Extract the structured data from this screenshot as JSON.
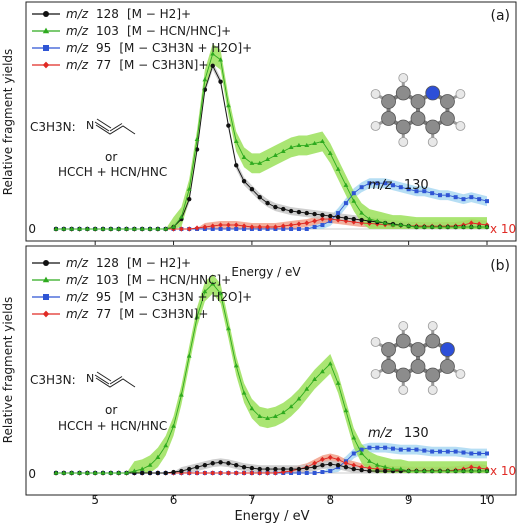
{
  "figure": {
    "ylabel": "Relative fragment yields",
    "xlabel": "Energy / eV",
    "xticks": [
      "5",
      "6",
      "7",
      "8",
      "9",
      "10"
    ],
    "zero_label": "0",
    "x10_label": "x 10",
    "reaction_label": "C3H3N:",
    "reaction_or": "or",
    "reaction_alt": "HCCH + HCN/HNC",
    "acrylonitrile_atom": "N",
    "molecule_label_mz": "m/z",
    "molecule_label_mass": "130",
    "colors": {
      "m128": "#111111",
      "m103": "#2eaa1f",
      "m95": "#2f55d4",
      "m77": "#e02a24",
      "band103": "#9be05a",
      "band95": "#a9d8f2",
      "band77": "#f2a08a",
      "band128": "#c6c6c6",
      "carbon": "#8c8c8c",
      "nitrogen": "#2d4fd8",
      "hydrogen": "#e8e8e8"
    }
  },
  "chart_data": [
    {
      "type": "line",
      "panel_label": "(a)",
      "xlabel": "Energy / eV",
      "ylabel": "Relative fragment yields",
      "xlim": [
        4.5,
        10.2
      ],
      "ylim": [
        0,
        1.05
      ],
      "legend_position": "top-left",
      "x": [
        4.5,
        4.6,
        4.7,
        4.8,
        4.9,
        5.0,
        5.1,
        5.2,
        5.3,
        5.4,
        5.5,
        5.6,
        5.7,
        5.8,
        5.9,
        6.0,
        6.1,
        6.2,
        6.3,
        6.4,
        6.5,
        6.6,
        6.7,
        6.8,
        6.9,
        7.0,
        7.1,
        7.2,
        7.3,
        7.4,
        7.5,
        7.6,
        7.7,
        7.8,
        7.9,
        8.0,
        8.1,
        8.2,
        8.3,
        8.4,
        8.5,
        8.6,
        8.7,
        8.8,
        8.9,
        9.0,
        9.1,
        9.2,
        9.3,
        9.4,
        9.5,
        9.6,
        9.7,
        9.8,
        9.9,
        10.0
      ],
      "series": [
        {
          "name": "m/z 128 [M − H2]+",
          "mz": "128",
          "ion": "[M − H2]+",
          "key": "m128",
          "marker": "circle",
          "values": [
            0,
            0,
            0,
            0,
            0,
            0,
            0,
            0,
            0,
            0,
            0,
            0,
            0,
            0,
            0,
            0.01,
            0.05,
            0.15,
            0.4,
            0.7,
            0.82,
            0.74,
            0.52,
            0.32,
            0.24,
            0.2,
            0.16,
            0.13,
            0.11,
            0.1,
            0.09,
            0.085,
            0.08,
            0.075,
            0.07,
            0.065,
            0.06,
            0.055,
            0.05,
            0.045,
            0.04,
            0.035,
            0.03,
            0.025,
            0.02,
            0.015,
            0.01,
            0.01,
            0.01,
            0.01,
            0.01,
            0.01,
            0.01,
            0.01,
            0.01,
            0.01
          ]
        },
        {
          "name": "m/z 103 [M − HCN/HNC]+",
          "mz": "103",
          "ion": "[M − HCN/HNC]+",
          "key": "m103",
          "marker": "triangle",
          "values": [
            0,
            0,
            0,
            0,
            0,
            0,
            0,
            0,
            0,
            0,
            0,
            0,
            0,
            0,
            0,
            0.01,
            0.06,
            0.2,
            0.45,
            0.75,
            0.88,
            0.85,
            0.62,
            0.44,
            0.36,
            0.33,
            0.33,
            0.35,
            0.37,
            0.39,
            0.41,
            0.42,
            0.42,
            0.43,
            0.44,
            0.38,
            0.3,
            0.22,
            0.14,
            0.08,
            0.05,
            0.04,
            0.03,
            0.02,
            0.02,
            0.015,
            0.01,
            0.01,
            0.01,
            0.01,
            0.01,
            0.01,
            0.01,
            0.01,
            0.01,
            0.01
          ]
        },
        {
          "name": "m/z 95 [M − C3H3N + H2O]+",
          "mz": "95",
          "ion": "[M − C3H3N + H2O]+",
          "key": "m95",
          "marker": "square",
          "values": [
            0,
            0,
            0,
            0,
            0,
            0,
            0,
            0,
            0,
            0,
            0,
            0,
            0,
            0,
            0,
            0,
            0,
            0,
            0,
            0,
            0,
            0,
            0,
            0,
            0,
            0,
            0,
            0,
            0,
            0,
            0,
            0,
            0,
            0.01,
            0.02,
            0.04,
            0.08,
            0.13,
            0.18,
            0.21,
            0.23,
            0.23,
            0.23,
            0.22,
            0.21,
            0.2,
            0.19,
            0.19,
            0.18,
            0.17,
            0.17,
            0.16,
            0.15,
            0.16,
            0.15,
            0.14
          ]
        },
        {
          "name": "m/z 77 [M − C3H3N]+",
          "mz": "77",
          "ion": "[M − C3H3N]+",
          "key": "m77",
          "marker": "diamond",
          "values": [
            0,
            0,
            0,
            0,
            0,
            0,
            0,
            0,
            0,
            0,
            0,
            0,
            0,
            0,
            0,
            0,
            0,
            0,
            0.005,
            0.01,
            0.015,
            0.02,
            0.02,
            0.02,
            0.015,
            0.01,
            0.01,
            0.01,
            0.01,
            0.015,
            0.02,
            0.025,
            0.03,
            0.04,
            0.05,
            0.05,
            0.045,
            0.04,
            0.035,
            0.03,
            0.028,
            0.025,
            0.022,
            0.02,
            0.018,
            0.016,
            0.015,
            0.014,
            0.014,
            0.014,
            0.014,
            0.015,
            0.02,
            0.03,
            0.025,
            0.02
          ]
        }
      ]
    },
    {
      "type": "line",
      "panel_label": "(b)",
      "xlabel": "Energy / eV",
      "ylabel": "Relative fragment yields",
      "xlim": [
        4.5,
        10.2
      ],
      "ylim": [
        0,
        1.05
      ],
      "legend_position": "top-left",
      "x": [
        4.5,
        4.6,
        4.7,
        4.8,
        4.9,
        5.0,
        5.1,
        5.2,
        5.3,
        5.4,
        5.5,
        5.6,
        5.7,
        5.8,
        5.9,
        6.0,
        6.1,
        6.2,
        6.3,
        6.4,
        6.5,
        6.6,
        6.7,
        6.8,
        6.9,
        7.0,
        7.1,
        7.2,
        7.3,
        7.4,
        7.5,
        7.6,
        7.7,
        7.8,
        7.9,
        8.0,
        8.1,
        8.2,
        8.3,
        8.4,
        8.5,
        8.6,
        8.7,
        8.8,
        8.9,
        9.0,
        9.1,
        9.2,
        9.3,
        9.4,
        9.5,
        9.6,
        9.7,
        9.8,
        9.9,
        10.0
      ],
      "series": [
        {
          "name": "m/z 128 [M − H2]+",
          "mz": "128",
          "ion": "[M − H2]+",
          "key": "m128",
          "marker": "circle",
          "values": [
            0,
            0,
            0,
            0,
            0,
            0,
            0,
            0,
            0,
            0,
            0,
            0,
            0,
            0,
            0,
            0.005,
            0.01,
            0.02,
            0.03,
            0.04,
            0.05,
            0.055,
            0.05,
            0.04,
            0.03,
            0.025,
            0.02,
            0.02,
            0.02,
            0.02,
            0.02,
            0.02,
            0.025,
            0.03,
            0.04,
            0.045,
            0.04,
            0.03,
            0.02,
            0.015,
            0.01,
            0.01,
            0.01,
            0.01,
            0.01,
            0.01,
            0.01,
            0.01,
            0.01,
            0.01,
            0.01,
            0.01,
            0.01,
            0.01,
            0.01,
            0.01
          ]
        },
        {
          "name": "m/z 103 [M − HCN/HNC]+",
          "mz": "103",
          "ion": "[M − HCN/HNC]+",
          "key": "m103",
          "marker": "triangle",
          "values": [
            0,
            0,
            0,
            0,
            0,
            0,
            0,
            0,
            0,
            0,
            0.01,
            0.02,
            0.04,
            0.08,
            0.14,
            0.24,
            0.4,
            0.6,
            0.8,
            0.93,
            0.97,
            0.92,
            0.74,
            0.55,
            0.41,
            0.33,
            0.29,
            0.28,
            0.29,
            0.31,
            0.34,
            0.38,
            0.43,
            0.48,
            0.52,
            0.56,
            0.46,
            0.32,
            0.18,
            0.1,
            0.06,
            0.04,
            0.03,
            0.02,
            0.02,
            0.01,
            0.01,
            0.01,
            0.01,
            0.01,
            0.01,
            0.01,
            0.01,
            0.01,
            0.01,
            0.01
          ]
        },
        {
          "name": "m/z 95 [M − C3H3N + H2O]+",
          "mz": "95",
          "ion": "[M − C3H3N + H2O]+",
          "key": "m95",
          "marker": "square",
          "values": [
            0,
            0,
            0,
            0,
            0,
            0,
            0,
            0,
            0,
            0,
            0,
            0,
            0,
            0,
            0,
            0,
            0,
            0,
            0,
            0,
            0,
            0,
            0,
            0,
            0,
            0,
            0,
            0,
            0,
            0,
            0,
            0,
            0,
            0,
            0.005,
            0.01,
            0.03,
            0.06,
            0.1,
            0.12,
            0.13,
            0.13,
            0.13,
            0.125,
            0.12,
            0.12,
            0.12,
            0.115,
            0.11,
            0.11,
            0.11,
            0.11,
            0.105,
            0.1,
            0.1,
            0.1
          ]
        },
        {
          "name": "m/z 77 [M − C3H3N]+",
          "mz": "77",
          "ion": "[M − C3H3N]+",
          "key": "m77",
          "marker": "diamond",
          "values": [
            0,
            0,
            0,
            0,
            0,
            0,
            0,
            0,
            0,
            0,
            0,
            0,
            0,
            0,
            0,
            0,
            0,
            0,
            0,
            0,
            0,
            0,
            0,
            0,
            0,
            0,
            0,
            0,
            0,
            0.005,
            0.01,
            0.02,
            0.03,
            0.05,
            0.07,
            0.08,
            0.07,
            0.05,
            0.04,
            0.03,
            0.025,
            0.02,
            0.02,
            0.015,
            0.015,
            0.012,
            0.012,
            0.012,
            0.012,
            0.012,
            0.012,
            0.015,
            0.02,
            0.03,
            0.025,
            0.02
          ]
        }
      ]
    }
  ]
}
